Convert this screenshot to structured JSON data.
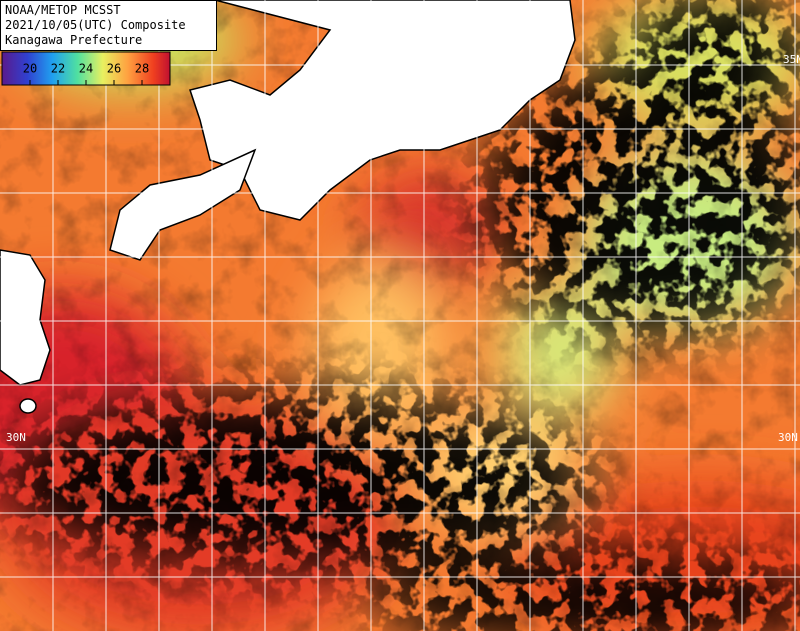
{
  "header": {
    "lines": [
      "NOAA/METOP MCSST",
      "2021/10/05(UTC) Composite",
      "Kanagawa Prefecture"
    ]
  },
  "colorbar": {
    "lim": [
      18,
      30
    ],
    "ticks": [
      20,
      22,
      24,
      26,
      28
    ]
  },
  "latitude_labels": [
    {
      "text": "35N",
      "side": "right"
    },
    {
      "text": "30N",
      "side": "left"
    },
    {
      "text": "30N",
      "side": "right"
    }
  ]
}
